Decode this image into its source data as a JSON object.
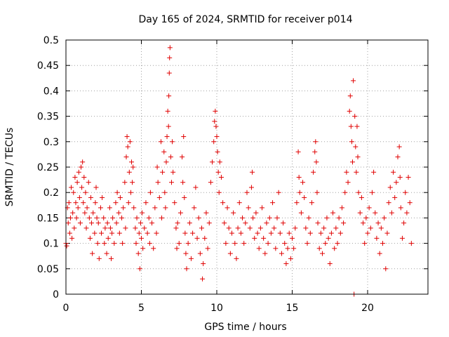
{
  "chart_data": {
    "type": "scatter",
    "title": "Day 165 of 2024, SRMTID for receiver p014",
    "xlabel": "GPS time / hours",
    "ylabel": "SRMTID / TECUs",
    "xlim": [
      0,
      24
    ],
    "ylim": [
      0,
      0.5
    ],
    "grid": true,
    "xticks": [
      0,
      5,
      10,
      15,
      20
    ],
    "yticks": [
      0,
      0.05,
      0.1,
      0.15,
      0.2,
      0.25,
      0.3,
      0.35,
      0.4,
      0.45,
      0.5
    ],
    "xtick_labels": [
      "0",
      "5",
      "10",
      "15",
      "20"
    ],
    "ytick_labels": [
      "0",
      "0.05",
      "0.1",
      "0.15",
      "0.2",
      "0.25",
      "0.3",
      "0.35",
      "0.4",
      "0.45",
      "0.5"
    ],
    "marker": "+",
    "color": "#e00000",
    "series": [
      {
        "name": "SRMTID",
        "points": [
          [
            0.0,
            0.1
          ],
          [
            0.05,
            0.095
          ],
          [
            0.1,
            0.17
          ],
          [
            0.15,
            0.14
          ],
          [
            0.2,
            0.18
          ],
          [
            0.25,
            0.12
          ],
          [
            0.3,
            0.15
          ],
          [
            0.35,
            0.21
          ],
          [
            0.4,
            0.11
          ],
          [
            0.45,
            0.16
          ],
          [
            0.5,
            0.2
          ],
          [
            0.55,
            0.13
          ],
          [
            0.6,
            0.23
          ],
          [
            0.65,
            0.18
          ],
          [
            0.7,
            0.15
          ],
          [
            0.75,
            0.22
          ],
          [
            0.8,
            0.17
          ],
          [
            0.85,
            0.24
          ],
          [
            0.9,
            0.19
          ],
          [
            0.95,
            0.14
          ],
          [
            1.0,
            0.25
          ],
          [
            1.05,
            0.21
          ],
          [
            1.1,
            0.26
          ],
          [
            1.15,
            0.18
          ],
          [
            1.2,
            0.23
          ],
          [
            1.25,
            0.16
          ],
          [
            1.3,
            0.2
          ],
          [
            1.35,
            0.13
          ],
          [
            1.4,
            0.17
          ],
          [
            1.5,
            0.22
          ],
          [
            1.55,
            0.15
          ],
          [
            1.6,
            0.11
          ],
          [
            1.65,
            0.19
          ],
          [
            1.7,
            0.14
          ],
          [
            1.75,
            0.08
          ],
          [
            1.8,
            0.16
          ],
          [
            1.9,
            0.12
          ],
          [
            1.95,
            0.18
          ],
          [
            2.0,
            0.21
          ],
          [
            2.05,
            0.15
          ],
          [
            2.1,
            0.1
          ],
          [
            2.15,
            0.14
          ],
          [
            2.2,
            0.07
          ],
          [
            2.3,
            0.17
          ],
          [
            2.35,
            0.12
          ],
          [
            2.4,
            0.19
          ],
          [
            2.5,
            0.15
          ],
          [
            2.55,
            0.1
          ],
          [
            2.6,
            0.13
          ],
          [
            2.7,
            0.08
          ],
          [
            2.75,
            0.14
          ],
          [
            2.8,
            0.11
          ],
          [
            2.9,
            0.17
          ],
          [
            2.95,
            0.13
          ],
          [
            3.0,
            0.07
          ],
          [
            3.05,
            0.12
          ],
          [
            3.1,
            0.15
          ],
          [
            3.2,
            0.1
          ],
          [
            3.3,
            0.18
          ],
          [
            3.35,
            0.14
          ],
          [
            3.4,
            0.2
          ],
          [
            3.5,
            0.16
          ],
          [
            3.55,
            0.12
          ],
          [
            3.6,
            0.19
          ],
          [
            3.7,
            0.15
          ],
          [
            3.75,
            0.1
          ],
          [
            3.8,
            0.17
          ],
          [
            3.9,
            0.22
          ],
          [
            3.95,
            0.13
          ],
          [
            4.0,
            0.27
          ],
          [
            4.05,
            0.31
          ],
          [
            4.1,
            0.29
          ],
          [
            4.15,
            0.18
          ],
          [
            4.2,
            0.24
          ],
          [
            4.25,
            0.3
          ],
          [
            4.3,
            0.2
          ],
          [
            4.35,
            0.26
          ],
          [
            4.4,
            0.22
          ],
          [
            4.45,
            0.25
          ],
          [
            4.5,
            0.17
          ],
          [
            4.6,
            0.13
          ],
          [
            4.65,
            0.1
          ],
          [
            4.7,
            0.15
          ],
          [
            4.8,
            0.08
          ],
          [
            4.85,
            0.12
          ],
          [
            4.9,
            0.05
          ],
          [
            4.95,
            0.14
          ],
          [
            5.0,
            0.11
          ],
          [
            5.05,
            0.16
          ],
          [
            5.1,
            0.09
          ],
          [
            5.2,
            0.13
          ],
          [
            5.3,
            0.18
          ],
          [
            5.4,
            0.12
          ],
          [
            5.5,
            0.15
          ],
          [
            5.55,
            0.1
          ],
          [
            5.6,
            0.2
          ],
          [
            5.7,
            0.14
          ],
          [
            5.8,
            0.09
          ],
          [
            5.9,
            0.17
          ],
          [
            6.0,
            0.12
          ],
          [
            6.05,
            0.25
          ],
          [
            6.1,
            0.22
          ],
          [
            6.2,
            0.19
          ],
          [
            6.3,
            0.3
          ],
          [
            6.35,
            0.15
          ],
          [
            6.4,
            0.24
          ],
          [
            6.5,
            0.28
          ],
          [
            6.55,
            0.2
          ],
          [
            6.6,
            0.17
          ],
          [
            6.65,
            0.26
          ],
          [
            6.7,
            0.31
          ],
          [
            6.75,
            0.36
          ],
          [
            6.8,
            0.33
          ],
          [
            6.82,
            0.39
          ],
          [
            6.85,
            0.435
          ],
          [
            6.87,
            0.465
          ],
          [
            6.9,
            0.485
          ],
          [
            6.95,
            0.27
          ],
          [
            7.0,
            0.22
          ],
          [
            7.05,
            0.3
          ],
          [
            7.1,
            0.24
          ],
          [
            7.2,
            0.18
          ],
          [
            7.3,
            0.13
          ],
          [
            7.35,
            0.09
          ],
          [
            7.4,
            0.14
          ],
          [
            7.5,
            0.1
          ],
          [
            7.6,
            0.16
          ],
          [
            7.7,
            0.27
          ],
          [
            7.75,
            0.22
          ],
          [
            7.8,
            0.31
          ],
          [
            7.85,
            0.19
          ],
          [
            7.9,
            0.12
          ],
          [
            7.95,
            0.08
          ],
          [
            8.0,
            0.05
          ],
          [
            8.1,
            0.1
          ],
          [
            8.2,
            0.14
          ],
          [
            8.3,
            0.07
          ],
          [
            8.4,
            0.12
          ],
          [
            8.5,
            0.17
          ],
          [
            8.6,
            0.21
          ],
          [
            8.7,
            0.11
          ],
          [
            8.8,
            0.15
          ],
          [
            8.9,
            0.08
          ],
          [
            9.0,
            0.13
          ],
          [
            9.05,
            0.03
          ],
          [
            9.1,
            0.06
          ],
          [
            9.2,
            0.11
          ],
          [
            9.3,
            0.16
          ],
          [
            9.4,
            0.09
          ],
          [
            9.5,
            0.14
          ],
          [
            9.6,
            0.22
          ],
          [
            9.7,
            0.26
          ],
          [
            9.8,
            0.3
          ],
          [
            9.85,
            0.34
          ],
          [
            9.9,
            0.36
          ],
          [
            9.95,
            0.33
          ],
          [
            10.0,
            0.31
          ],
          [
            10.05,
            0.28
          ],
          [
            10.1,
            0.24
          ],
          [
            10.15,
            0.2
          ],
          [
            10.2,
            0.26
          ],
          [
            10.3,
            0.23
          ],
          [
            10.4,
            0.18
          ],
          [
            10.5,
            0.14
          ],
          [
            10.6,
            0.1
          ],
          [
            10.7,
            0.17
          ],
          [
            10.8,
            0.13
          ],
          [
            10.9,
            0.08
          ],
          [
            11.0,
            0.12
          ],
          [
            11.1,
            0.16
          ],
          [
            11.2,
            0.1
          ],
          [
            11.3,
            0.07
          ],
          [
            11.4,
            0.13
          ],
          [
            11.5,
            0.18
          ],
          [
            11.6,
            0.12
          ],
          [
            11.7,
            0.15
          ],
          [
            11.8,
            0.1
          ],
          [
            11.9,
            0.14
          ],
          [
            12.0,
            0.2
          ],
          [
            12.1,
            0.17
          ],
          [
            12.2,
            0.13
          ],
          [
            12.3,
            0.21
          ],
          [
            12.35,
            0.24
          ],
          [
            12.4,
            0.15
          ],
          [
            12.5,
            0.11
          ],
          [
            12.6,
            0.16
          ],
          [
            12.7,
            0.12
          ],
          [
            12.8,
            0.09
          ],
          [
            12.9,
            0.13
          ],
          [
            13.0,
            0.17
          ],
          [
            13.1,
            0.11
          ],
          [
            13.2,
            0.08
          ],
          [
            13.3,
            0.14
          ],
          [
            13.4,
            0.1
          ],
          [
            13.5,
            0.15
          ],
          [
            13.6,
            0.12
          ],
          [
            13.7,
            0.18
          ],
          [
            13.8,
            0.13
          ],
          [
            13.9,
            0.09
          ],
          [
            14.0,
            0.15
          ],
          [
            14.1,
            0.2
          ],
          [
            14.2,
            0.12
          ],
          [
            14.3,
            0.08
          ],
          [
            14.4,
            0.14
          ],
          [
            14.5,
            0.1
          ],
          [
            14.6,
            0.06
          ],
          [
            14.7,
            0.09
          ],
          [
            14.8,
            0.12
          ],
          [
            14.9,
            0.07
          ],
          [
            15.0,
            0.11
          ],
          [
            15.1,
            0.09
          ],
          [
            15.2,
            0.13
          ],
          [
            15.3,
            0.18
          ],
          [
            15.4,
            0.28
          ],
          [
            15.45,
            0.23
          ],
          [
            15.5,
            0.2
          ],
          [
            15.6,
            0.16
          ],
          [
            15.7,
            0.22
          ],
          [
            15.8,
            0.19
          ],
          [
            15.9,
            0.13
          ],
          [
            16.0,
            0.1
          ],
          [
            16.1,
            0.15
          ],
          [
            16.2,
            0.12
          ],
          [
            16.3,
            0.18
          ],
          [
            16.4,
            0.24
          ],
          [
            16.5,
            0.28
          ],
          [
            16.55,
            0.3
          ],
          [
            16.6,
            0.26
          ],
          [
            16.65,
            0.2
          ],
          [
            16.7,
            0.14
          ],
          [
            16.8,
            0.09
          ],
          [
            16.9,
            0.12
          ],
          [
            17.0,
            0.08
          ],
          [
            17.1,
            0.13
          ],
          [
            17.2,
            0.1
          ],
          [
            17.3,
            0.15
          ],
          [
            17.4,
            0.11
          ],
          [
            17.5,
            0.06
          ],
          [
            17.6,
            0.12
          ],
          [
            17.7,
            0.16
          ],
          [
            17.8,
            0.09
          ],
          [
            17.9,
            0.13
          ],
          [
            18.0,
            0.1
          ],
          [
            18.1,
            0.15
          ],
          [
            18.2,
            0.12
          ],
          [
            18.3,
            0.17
          ],
          [
            18.4,
            0.14
          ],
          [
            18.5,
            0.2
          ],
          [
            18.6,
            0.24
          ],
          [
            18.7,
            0.22
          ],
          [
            18.8,
            0.36
          ],
          [
            18.85,
            0.39
          ],
          [
            18.9,
            0.33
          ],
          [
            18.95,
            0.3
          ],
          [
            19.0,
            0.26
          ],
          [
            19.05,
            0.42
          ],
          [
            19.1,
            0.0
          ],
          [
            19.15,
            0.35
          ],
          [
            19.2,
            0.29
          ],
          [
            19.25,
            0.24
          ],
          [
            19.3,
            0.33
          ],
          [
            19.35,
            0.27
          ],
          [
            19.4,
            0.2
          ],
          [
            19.5,
            0.16
          ],
          [
            19.6,
            0.19
          ],
          [
            19.7,
            0.14
          ],
          [
            19.8,
            0.1
          ],
          [
            19.9,
            0.15
          ],
          [
            20.0,
            0.12
          ],
          [
            20.1,
            0.17
          ],
          [
            20.2,
            0.13
          ],
          [
            20.3,
            0.2
          ],
          [
            20.4,
            0.24
          ],
          [
            20.5,
            0.16
          ],
          [
            20.6,
            0.11
          ],
          [
            20.7,
            0.14
          ],
          [
            20.8,
            0.08
          ],
          [
            20.9,
            0.13
          ],
          [
            21.0,
            0.1
          ],
          [
            21.1,
            0.15
          ],
          [
            21.2,
            0.05
          ],
          [
            21.3,
            0.12
          ],
          [
            21.4,
            0.18
          ],
          [
            21.5,
            0.21
          ],
          [
            21.6,
            0.16
          ],
          [
            21.7,
            0.24
          ],
          [
            21.8,
            0.19
          ],
          [
            21.9,
            0.22
          ],
          [
            22.0,
            0.27
          ],
          [
            22.1,
            0.29
          ],
          [
            22.15,
            0.23
          ],
          [
            22.2,
            0.17
          ],
          [
            22.3,
            0.11
          ],
          [
            22.4,
            0.14
          ],
          [
            22.5,
            0.2
          ],
          [
            22.6,
            0.16
          ],
          [
            22.7,
            0.23
          ],
          [
            22.8,
            0.18
          ],
          [
            22.9,
            0.1
          ]
        ]
      }
    ]
  }
}
